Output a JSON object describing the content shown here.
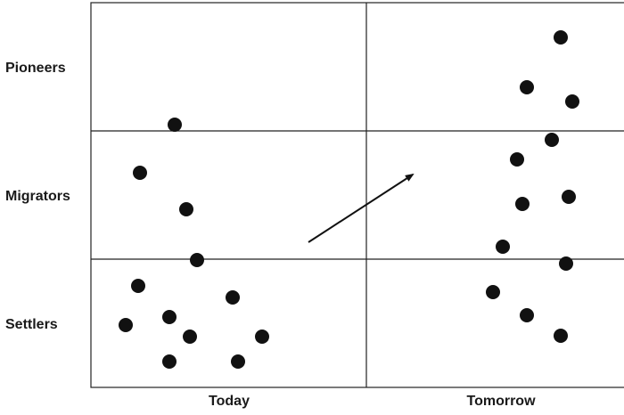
{
  "rows": [
    "Pioneers",
    "Migrators",
    "Settlers"
  ],
  "columns": [
    "Today",
    "Tomorrow"
  ],
  "colors": {
    "dot": "#111111",
    "line": "#222222",
    "text": "#1a1a1a"
  }
}
